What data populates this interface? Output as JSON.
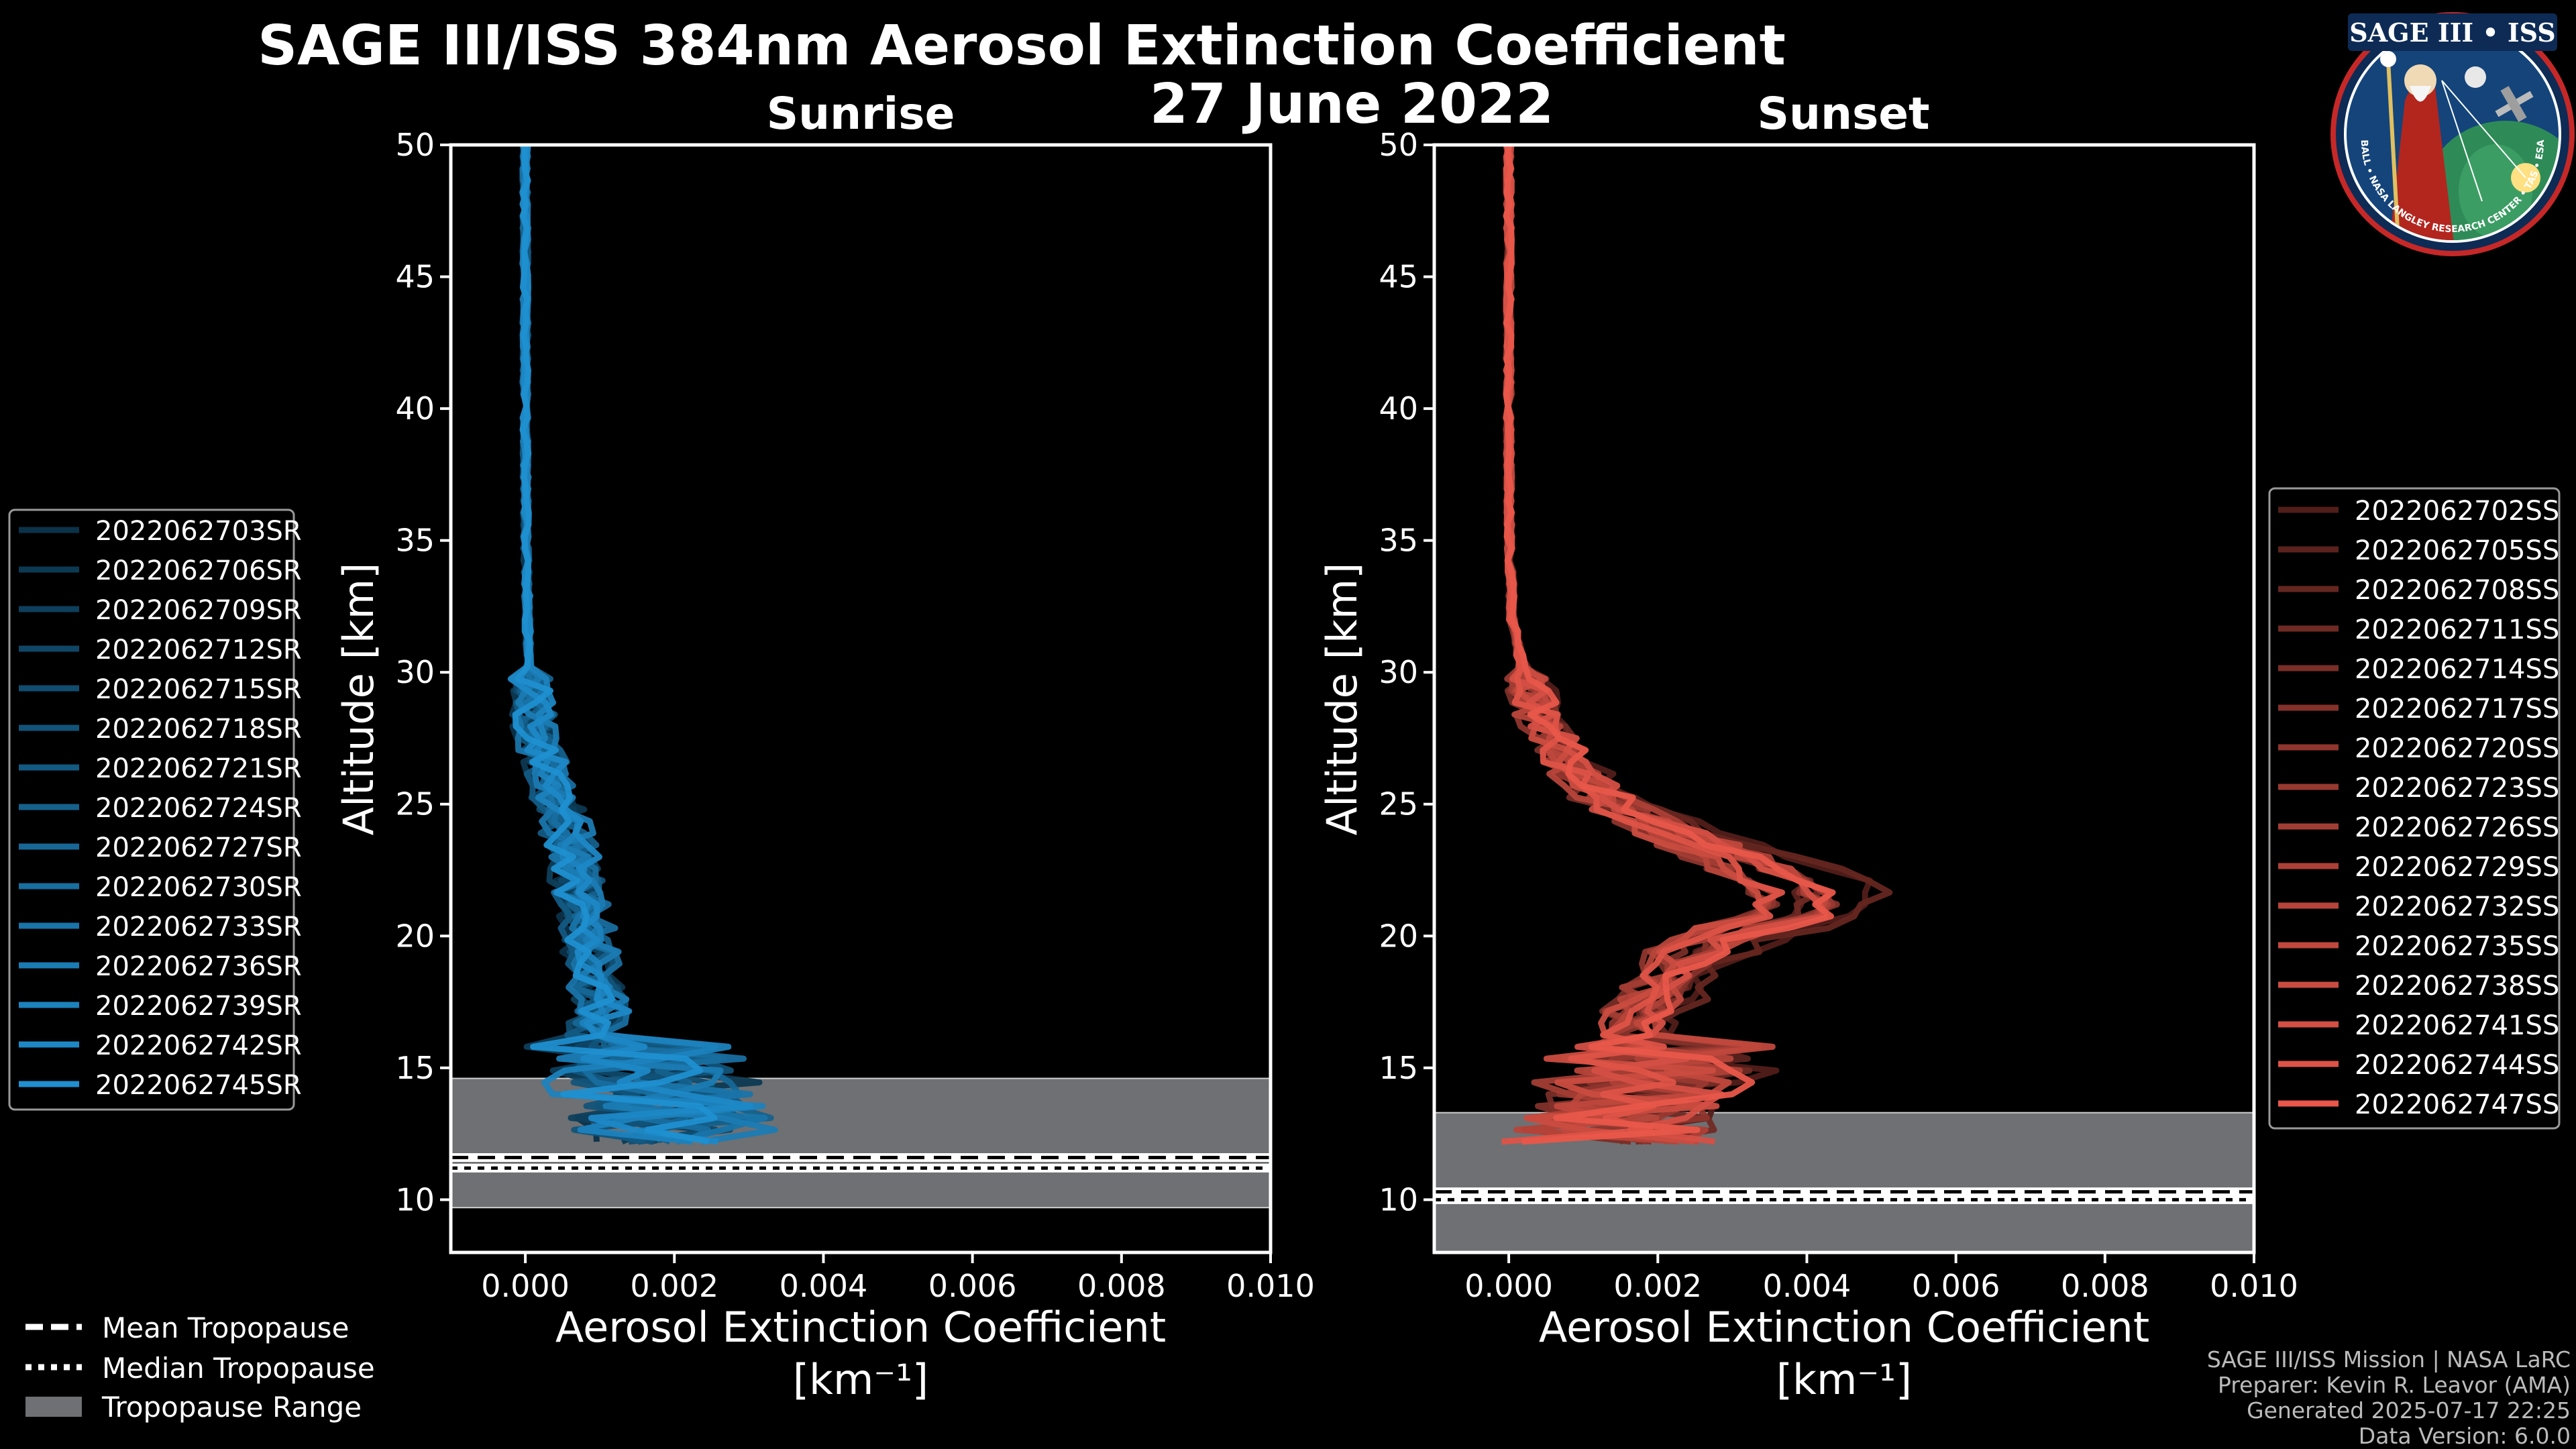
{
  "figure": {
    "title_line1": "SAGE III/ISS 384nm Aerosol Extinction Coefficient",
    "title_line2": "27 June 2022"
  },
  "logo": {
    "text": "SAGE III • ISS",
    "ring_text": "BALL • NASA LANGLEY RESEARCH CENTER • TAS • ESA"
  },
  "legend": {
    "mean_tropopause": "Mean Tropopause",
    "median_tropopause": "Median Tropopause",
    "tropopause_range": "Tropopause Range"
  },
  "credits": {
    "line1": "SAGE III/ISS Mission | NASA LaRC",
    "line2": "Preparer: Kevin R. Leavor (AMA)",
    "line3": "Generated 2025-07-17 22:25",
    "line4": "Data Version: 6.0.0"
  },
  "colors": {
    "sunrise": "#1f8fd0",
    "sunset": "#e8574a",
    "tropopause_range": "#6e7073",
    "background": "#000000"
  },
  "chart_data": [
    {
      "type": "line",
      "title": "Sunrise",
      "xlabel": "Aerosol Extinction Coefficient",
      "xlabel_units": "[km⁻¹]",
      "ylabel": "Altitude [km]",
      "xlim": [
        -0.001,
        0.01
      ],
      "ylim": [
        8,
        50
      ],
      "xticks": [
        0,
        0.002,
        0.004,
        0.006,
        0.008,
        0.01
      ],
      "xtick_labels": [
        "0.000",
        "0.002",
        "0.004",
        "0.006",
        "0.008",
        "0.010"
      ],
      "yticks": [
        10,
        15,
        20,
        25,
        30,
        35,
        40,
        45,
        50
      ],
      "ytick_labels": [
        "10",
        "15",
        "20",
        "25",
        "30",
        "35",
        "40",
        "45",
        "50"
      ],
      "tropopause": {
        "range": [
          9.7,
          14.6
        ],
        "mean": 11.6,
        "median": 11.2
      },
      "series": [
        {
          "name": "2022062703SR",
          "seed": 3
        },
        {
          "name": "2022062706SR",
          "seed": 6
        },
        {
          "name": "2022062709SR",
          "seed": 9
        },
        {
          "name": "2022062712SR",
          "seed": 12
        },
        {
          "name": "2022062715SR",
          "seed": 15
        },
        {
          "name": "2022062718SR",
          "seed": 18
        },
        {
          "name": "2022062721SR",
          "seed": 21
        },
        {
          "name": "2022062724SR",
          "seed": 24
        },
        {
          "name": "2022062727SR",
          "seed": 27
        },
        {
          "name": "2022062730SR",
          "seed": 30
        },
        {
          "name": "2022062733SR",
          "seed": 33
        },
        {
          "name": "2022062736SR",
          "seed": 36
        },
        {
          "name": "2022062739SR",
          "seed": 39
        },
        {
          "name": "2022062742SR",
          "seed": 42
        },
        {
          "name": "2022062745SR",
          "seed": 45
        }
      ],
      "base_profile": [
        [
          50,
          0.0
        ],
        [
          45,
          0.0
        ],
        [
          40,
          0.0
        ],
        [
          35,
          1e-05
        ],
        [
          32,
          3e-05
        ],
        [
          30,
          5e-05
        ],
        [
          28,
          0.00012
        ],
        [
          26,
          0.0003
        ],
        [
          24,
          0.00055
        ],
        [
          22,
          0.0007
        ],
        [
          21,
          0.0008
        ],
        [
          20,
          0.00085
        ],
        [
          19,
          0.0009
        ],
        [
          18,
          0.00095
        ],
        [
          17,
          0.001
        ],
        [
          16,
          0.0009
        ],
        [
          15,
          0.001
        ],
        [
          14,
          0.0013
        ],
        [
          13,
          0.0014
        ],
        [
          12,
          0.0011
        ]
      ],
      "legend_position": "left"
    },
    {
      "type": "line",
      "title": "Sunset",
      "xlabel": "Aerosol Extinction Coefficient",
      "xlabel_units": "[km⁻¹]",
      "ylabel": "Altitude [km]",
      "xlim": [
        -0.001,
        0.01
      ],
      "ylim": [
        8,
        50
      ],
      "xticks": [
        0,
        0.002,
        0.004,
        0.006,
        0.008,
        0.01
      ],
      "xtick_labels": [
        "0.000",
        "0.002",
        "0.004",
        "0.006",
        "0.008",
        "0.010"
      ],
      "yticks": [
        10,
        15,
        20,
        25,
        30,
        35,
        40,
        45,
        50
      ],
      "ytick_labels": [
        "10",
        "15",
        "20",
        "25",
        "30",
        "35",
        "40",
        "45",
        "50"
      ],
      "tropopause": {
        "range": [
          8.0,
          13.3
        ],
        "mean": 10.3,
        "median": 10.0
      },
      "series": [
        {
          "name": "2022062702SS",
          "seed": 2
        },
        {
          "name": "2022062705SS",
          "seed": 5
        },
        {
          "name": "2022062708SS",
          "seed": 8
        },
        {
          "name": "2022062711SS",
          "seed": 11
        },
        {
          "name": "2022062714SS",
          "seed": 14
        },
        {
          "name": "2022062717SS",
          "seed": 17
        },
        {
          "name": "2022062720SS",
          "seed": 20
        },
        {
          "name": "2022062723SS",
          "seed": 23
        },
        {
          "name": "2022062726SS",
          "seed": 26
        },
        {
          "name": "2022062729SS",
          "seed": 29
        },
        {
          "name": "2022062732SS",
          "seed": 32
        },
        {
          "name": "2022062735SS",
          "seed": 35
        },
        {
          "name": "2022062738SS",
          "seed": 38
        },
        {
          "name": "2022062741SS",
          "seed": 41
        },
        {
          "name": "2022062744SS",
          "seed": 44
        },
        {
          "name": "2022062747SS",
          "seed": 47
        }
      ],
      "base_profile": [
        [
          50,
          0.0
        ],
        [
          45,
          0.0
        ],
        [
          40,
          0.0
        ],
        [
          35,
          1e-05
        ],
        [
          32,
          5e-05
        ],
        [
          30,
          0.0002
        ],
        [
          28,
          0.0005
        ],
        [
          26,
          0.001
        ],
        [
          25,
          0.0015
        ],
        [
          24,
          0.0023
        ],
        [
          23,
          0.0032
        ],
        [
          22,
          0.004
        ],
        [
          21,
          0.0042
        ],
        [
          20,
          0.003
        ],
        [
          19,
          0.0024
        ],
        [
          18,
          0.0022
        ],
        [
          17,
          0.0018
        ],
        [
          16,
          0.0017
        ],
        [
          15,
          0.0015
        ],
        [
          14,
          0.0013
        ],
        [
          13,
          0.001
        ],
        [
          12,
          0.0008
        ]
      ],
      "legend_position": "right"
    }
  ]
}
